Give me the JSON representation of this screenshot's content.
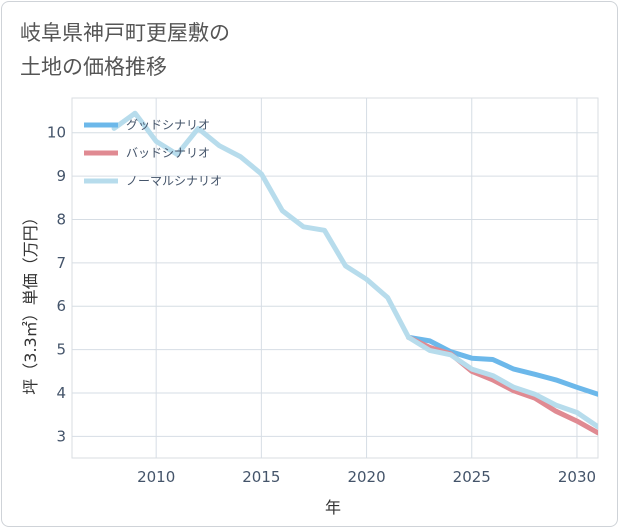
{
  "title_lines": [
    "岐阜県神戸町更屋敷の",
    "土地の価格推移"
  ],
  "chart_data": {
    "type": "line",
    "xlabel": "年",
    "ylabel": "坪（3.3㎡）単価（万円）",
    "xlim": [
      2006,
      2031
    ],
    "ylim": [
      2.5,
      10.8
    ],
    "x_ticks": [
      2010,
      2015,
      2020,
      2025,
      2030
    ],
    "y_ticks": [
      3,
      4,
      5,
      6,
      7,
      8,
      9,
      10
    ],
    "grid": true,
    "legend_position": "top-left",
    "series": [
      {
        "name": "グッドシナリオ",
        "color": "#6cb8ea",
        "x": [
          2022,
          2023,
          2024,
          2025,
          2026,
          2027,
          2028,
          2029,
          2030,
          2031
        ],
        "y": [
          5.28,
          5.2,
          4.95,
          4.8,
          4.77,
          4.55,
          4.43,
          4.3,
          4.13,
          3.97
        ]
      },
      {
        "name": "バッドシナリオ",
        "color": "#e08a92",
        "x": [
          2022,
          2023,
          2024,
          2025,
          2026,
          2027,
          2028,
          2029,
          2030,
          2031
        ],
        "y": [
          5.28,
          5.05,
          4.9,
          4.5,
          4.3,
          4.05,
          3.88,
          3.58,
          3.35,
          3.08
        ]
      },
      {
        "name": "ノーマルシナリオ",
        "color": "#b7dcec",
        "x": [
          2008,
          2009,
          2010,
          2011,
          2012,
          2013,
          2014,
          2015,
          2016,
          2017,
          2018,
          2019,
          2020,
          2021,
          2022,
          2023,
          2024,
          2025,
          2026,
          2027,
          2028,
          2029,
          2030,
          2031
        ],
        "y": [
          10.1,
          10.45,
          9.8,
          9.5,
          10.1,
          9.7,
          9.45,
          9.05,
          8.2,
          7.83,
          7.75,
          6.93,
          6.62,
          6.2,
          5.28,
          4.98,
          4.88,
          4.55,
          4.4,
          4.13,
          3.97,
          3.72,
          3.55,
          3.22
        ]
      }
    ]
  }
}
